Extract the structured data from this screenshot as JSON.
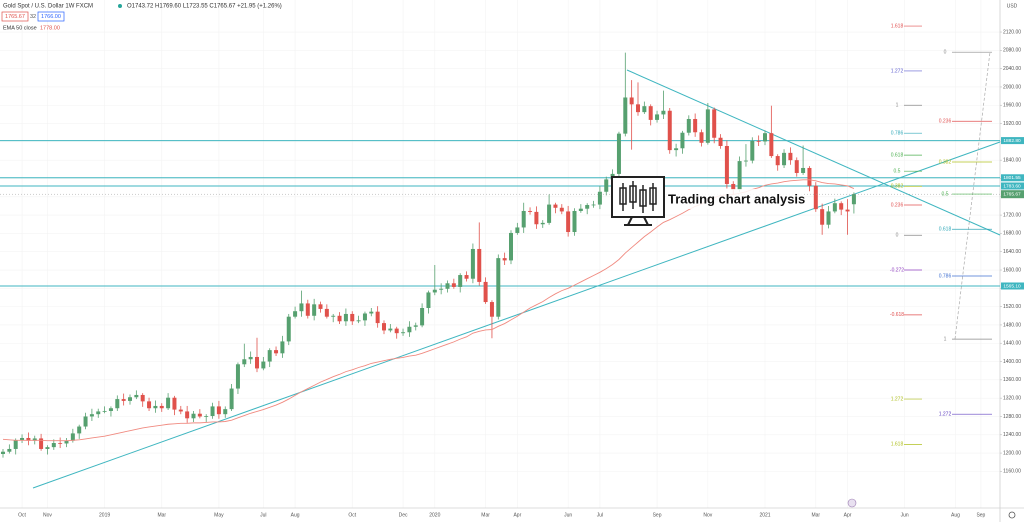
{
  "chart_data": {
    "type": "candlestick",
    "header": {
      "symbol": "Gold Spot / U.S. Dollar  1W  FXCM",
      "ohlc": "O1743.72  H1769.60  L1723.55  C1765.67  +21.95 (+1.26%)",
      "bid": "1765.67",
      "spread": "32",
      "ask": "1766.00",
      "ema_name": "EMA 50 close",
      "ema_value": "1778.00"
    },
    "currency": "USD",
    "overlay_text": "Trading chart analysis",
    "up_color": "#56a06f",
    "down_color": "#e0514b",
    "ema_color": "#f08a80",
    "level_color": "#3fb6c0",
    "grid": true,
    "ylim": [
      1080,
      2190
    ],
    "yticks": [
      {
        "value": 1160,
        "label": "1160.00"
      },
      {
        "value": 1200,
        "label": "1200.00"
      },
      {
        "value": 1240,
        "label": "1240.00"
      },
      {
        "value": 1280,
        "label": "1280.00"
      },
      {
        "value": 1320,
        "label": "1320.00"
      },
      {
        "value": 1360,
        "label": "1360.00"
      },
      {
        "value": 1400,
        "label": "1400.00"
      },
      {
        "value": 1440,
        "label": "1440.00"
      },
      {
        "value": 1480,
        "label": "1480.00"
      },
      {
        "value": 1520,
        "label": "1520.00"
      },
      {
        "value": 1560,
        "label": "1560.00"
      },
      {
        "value": 1600,
        "label": "1600.00"
      },
      {
        "value": 1640,
        "label": "1640.00"
      },
      {
        "value": 1680,
        "label": "1680.00"
      },
      {
        "value": 1720,
        "label": "1720.00"
      },
      {
        "value": 1760,
        "label": "1760.00"
      },
      {
        "value": 1800,
        "label": "1800.00"
      },
      {
        "value": 1840,
        "label": "1840.00"
      },
      {
        "value": 1880,
        "label": "1880.00"
      },
      {
        "value": 1920,
        "label": "1920.00"
      },
      {
        "value": 1960,
        "label": "1960.00"
      },
      {
        "value": 2000,
        "label": "2000.00"
      },
      {
        "value": 2040,
        "label": "2040.00"
      },
      {
        "value": 2080,
        "label": "2080.00"
      },
      {
        "value": 2120,
        "label": "2120.00"
      }
    ],
    "categories": [
      null,
      null,
      null,
      "Oct",
      null,
      null,
      null,
      "Nov",
      null,
      null,
      null,
      null,
      null,
      null,
      null,
      null,
      "2019",
      null,
      null,
      null,
      null,
      null,
      null,
      null,
      null,
      "Mar",
      null,
      null,
      null,
      null,
      null,
      null,
      null,
      null,
      "May",
      null,
      null,
      null,
      null,
      null,
      null,
      "Jul",
      null,
      null,
      null,
      null,
      "Aug",
      null,
      null,
      null,
      null,
      null,
      null,
      null,
      null,
      "Oct",
      null,
      null,
      null,
      null,
      null,
      null,
      null,
      "Dec",
      null,
      null,
      null,
      null,
      "2020",
      null,
      null,
      null,
      null,
      null,
      null,
      null,
      "Mar",
      null,
      null,
      null,
      null,
      "Apr",
      null,
      null,
      null,
      null,
      null,
      null,
      null,
      "Jun",
      null,
      null,
      null,
      null,
      "Jul",
      null,
      null,
      null,
      null,
      null,
      null,
      null,
      null,
      "Sep",
      null,
      null,
      null,
      null,
      null,
      null,
      null,
      "Nov",
      null,
      null,
      null,
      null,
      null,
      null,
      null,
      null,
      "2021",
      null,
      null,
      null,
      null,
      null,
      null,
      null,
      "Mar",
      null,
      null,
      null,
      null,
      "Apr",
      null,
      null,
      null,
      null,
      null,
      null,
      null,
      null,
      "Jun",
      null,
      null,
      null,
      null,
      null,
      null,
      null,
      "Aug",
      null,
      null,
      null,
      "Sep",
      null,
      null
    ],
    "candles": {
      "open": [
        1198,
        1203,
        1209,
        1228,
        1233,
        1227,
        1232,
        1209,
        1213,
        1222,
        1221,
        1227,
        1243,
        1258,
        1280,
        1285,
        1291,
        1292,
        1298,
        1318,
        1314,
        1322,
        1327,
        1313,
        1298,
        1303,
        1298,
        1321,
        1295,
        1291,
        1276,
        1286,
        1280,
        1281,
        1302,
        1285,
        1296,
        1341,
        1394,
        1405,
        1410,
        1385,
        1400,
        1425,
        1418,
        1444,
        1498,
        1510,
        1527,
        1500,
        1525,
        1515,
        1498,
        1500,
        1488,
        1504,
        1488,
        1490,
        1505,
        1509,
        1484,
        1468,
        1472,
        1462,
        1464,
        1476,
        1479,
        1517,
        1551,
        1557,
        1559,
        1571,
        1563,
        1589,
        1581,
        1646,
        1574,
        1530,
        1498,
        1626,
        1621,
        1681,
        1693,
        1729,
        1727,
        1700,
        1703,
        1743,
        1736,
        1728,
        1683,
        1729,
        1734,
        1742,
        1743,
        1771,
        1798,
        1810,
        1898,
        1977,
        1962,
        1945,
        1958,
        1928,
        1940,
        1948,
        1862,
        1866,
        1900,
        1930,
        1901,
        1878,
        1951,
        1889,
        1871,
        1788,
        1775,
        1838,
        1839,
        1882,
        1881,
        1899,
        1849,
        1829,
        1856,
        1840,
        1812,
        1823,
        1784,
        1733,
        1699,
        1728,
        1746,
        1732,
        1743.72,
        null,
        null,
        null,
        null,
        null,
        null,
        null,
        null,
        null,
        null,
        null,
        null,
        null,
        null,
        null,
        null,
        null,
        null,
        null,
        null,
        null,
        null
      ],
      "high": [
        1209,
        1219,
        1232,
        1241,
        1245,
        1238,
        1242,
        1217,
        1230,
        1234,
        1233,
        1253,
        1262,
        1288,
        1297,
        1297,
        1302,
        1302,
        1326,
        1330,
        1328,
        1337,
        1331,
        1321,
        1315,
        1309,
        1331,
        1325,
        1303,
        1303,
        1292,
        1296,
        1285,
        1310,
        1314,
        1302,
        1351,
        1398,
        1439,
        1422,
        1452,
        1410,
        1429,
        1433,
        1456,
        1504,
        1520,
        1555,
        1535,
        1537,
        1531,
        1525,
        1504,
        1508,
        1516,
        1510,
        1500,
        1509,
        1517,
        1521,
        1490,
        1482,
        1476,
        1472,
        1488,
        1485,
        1527,
        1555,
        1611,
        1571,
        1577,
        1581,
        1593,
        1597,
        1658,
        1704,
        1584,
        1534,
        1634,
        1638,
        1687,
        1703,
        1747,
        1737,
        1739,
        1709,
        1765,
        1747,
        1744,
        1740,
        1735,
        1744,
        1746,
        1751,
        1783,
        1804,
        1820,
        1902,
        2075,
        2015,
        2010,
        1968,
        1962,
        1948,
        1992,
        1954,
        1876,
        1904,
        1938,
        1942,
        1907,
        1965,
        1955,
        1897,
        1883,
        1794,
        1848,
        1875,
        1890,
        1894,
        1905,
        1959,
        1853,
        1864,
        1868,
        1846,
        1872,
        1827,
        1792,
        1745,
        1740,
        1756,
        1750,
        1755,
        1769.6,
        null,
        null,
        null,
        null,
        null,
        null,
        null,
        null,
        null,
        null,
        null,
        null,
        null,
        null,
        null,
        null,
        null,
        null,
        null,
        null,
        null,
        null
      ],
      "low": [
        1190,
        1199,
        1197,
        1222,
        1217,
        1219,
        1205,
        1197,
        1207,
        1211,
        1213,
        1223,
        1231,
        1252,
        1270,
        1277,
        1287,
        1280,
        1292,
        1304,
        1306,
        1318,
        1301,
        1292,
        1288,
        1290,
        1294,
        1283,
        1285,
        1266,
        1268,
        1276,
        1268,
        1275,
        1275,
        1277,
        1292,
        1329,
        1388,
        1395,
        1377,
        1381,
        1388,
        1412,
        1408,
        1436,
        1494,
        1498,
        1494,
        1490,
        1507,
        1494,
        1486,
        1482,
        1478,
        1480,
        1484,
        1478,
        1499,
        1474,
        1460,
        1464,
        1450,
        1456,
        1454,
        1468,
        1475,
        1505,
        1545,
        1547,
        1551,
        1559,
        1551,
        1575,
        1571,
        1566,
        1526,
        1451,
        1492,
        1611,
        1613,
        1677,
        1681,
        1721,
        1690,
        1692,
        1699,
        1724,
        1722,
        1673,
        1675,
        1725,
        1722,
        1736,
        1733,
        1763,
        1794,
        1798,
        1892,
        1863,
        1937,
        1941,
        1916,
        1922,
        1930,
        1854,
        1848,
        1854,
        1894,
        1891,
        1870,
        1874,
        1877,
        1865,
        1778,
        1764,
        1771,
        1826,
        1833,
        1871,
        1873,
        1845,
        1817,
        1823,
        1830,
        1804,
        1808,
        1772,
        1727,
        1677,
        1691,
        1724,
        1720,
        1677,
        1723.55,
        null,
        null,
        null,
        null,
        null,
        null,
        null,
        null,
        null,
        null,
        null,
        null,
        null,
        null,
        null,
        null,
        null,
        null,
        null,
        null,
        null,
        null
      ],
      "close": [
        1203,
        1209,
        1228,
        1233,
        1227,
        1232,
        1209,
        1213,
        1222,
        1221,
        1227,
        1243,
        1258,
        1280,
        1285,
        1291,
        1292,
        1298,
        1318,
        1314,
        1322,
        1327,
        1313,
        1298,
        1303,
        1298,
        1321,
        1295,
        1291,
        1276,
        1286,
        1280,
        1281,
        1302,
        1285,
        1296,
        1341,
        1394,
        1405,
        1410,
        1385,
        1400,
        1425,
        1418,
        1444,
        1498,
        1510,
        1527,
        1500,
        1525,
        1515,
        1498,
        1500,
        1488,
        1504,
        1488,
        1490,
        1505,
        1509,
        1484,
        1468,
        1472,
        1462,
        1464,
        1476,
        1479,
        1517,
        1551,
        1557,
        1559,
        1571,
        1563,
        1589,
        1581,
        1646,
        1574,
        1530,
        1498,
        1626,
        1621,
        1681,
        1693,
        1729,
        1727,
        1700,
        1703,
        1743,
        1736,
        1728,
        1683,
        1729,
        1734,
        1742,
        1743,
        1771,
        1798,
        1810,
        1898,
        1977,
        1962,
        1945,
        1958,
        1928,
        1940,
        1948,
        1862,
        1866,
        1900,
        1930,
        1901,
        1878,
        1951,
        1889,
        1871,
        1788,
        1775,
        1838,
        1839,
        1882,
        1881,
        1899,
        1849,
        1829,
        1856,
        1840,
        1812,
        1823,
        1784,
        1733,
        1699,
        1728,
        1746,
        1732,
        1728,
        1765.67,
        null,
        null,
        null,
        null,
        null,
        null,
        null,
        null,
        null,
        null,
        null,
        null,
        null,
        null,
        null,
        null,
        null,
        null,
        null,
        null,
        null,
        null
      ]
    },
    "ema": [
      1230,
      1229,
      1228,
      1228,
      1228,
      1228,
      1228,
      1227,
      1227,
      1227,
      1227,
      1228,
      1229,
      1231,
      1233,
      1235,
      1237,
      1240,
      1243,
      1246,
      1249,
      1252,
      1255,
      1257,
      1259,
      1261,
      1263,
      1264,
      1265,
      1265,
      1266,
      1266,
      1267,
      1268,
      1268,
      1269,
      1272,
      1277,
      1282,
      1287,
      1291,
      1295,
      1300,
      1305,
      1311,
      1318,
      1326,
      1334,
      1341,
      1348,
      1355,
      1361,
      1367,
      1372,
      1378,
      1382,
      1387,
      1391,
      1396,
      1399,
      1402,
      1405,
      1407,
      1409,
      1412,
      1414,
      1418,
      1423,
      1428,
      1433,
      1438,
      1443,
      1449,
      1454,
      1462,
      1466,
      1469,
      1470,
      1477,
      1483,
      1491,
      1499,
      1508,
      1517,
      1524,
      1531,
      1540,
      1548,
      1555,
      1560,
      1567,
      1574,
      1581,
      1588,
      1595,
      1603,
      1612,
      1623,
      1637,
      1649,
      1661,
      1673,
      1683,
      1694,
      1704,
      1710,
      1717,
      1724,
      1732,
      1739,
      1744,
      1753,
      1758,
      1763,
      1764,
      1765,
      1768,
      1771,
      1776,
      1780,
      1785,
      1788,
      1790,
      1793,
      1795,
      1796,
      1797,
      1797,
      1795,
      1791,
      1789,
      1788,
      1786,
      1784,
      1778,
      null,
      null,
      null,
      null,
      null,
      null,
      null,
      null,
      null,
      null,
      null,
      null,
      null,
      null,
      null,
      null,
      null,
      null,
      null,
      null,
      null,
      null
    ],
    "levels": [
      {
        "value": 1882.8,
        "label": "1882.80"
      },
      {
        "value": 1801.55,
        "label": "1801.55"
      },
      {
        "value": 1783.6,
        "label": "1783.60"
      },
      {
        "value": 1565.1,
        "label": "1565.10"
      }
    ],
    "fib_left": [
      {
        "label": "1.618",
        "price": 2133,
        "color": "#e05050"
      },
      {
        "label": "1.272",
        "price": 2035,
        "color": "#6060d0"
      },
      {
        "label": "1",
        "price": 1960,
        "color": "#888888"
      },
      {
        "label": "0.786",
        "price": 1899,
        "color": "#30a8b8"
      },
      {
        "label": "0.618",
        "price": 1851,
        "color": "#4caf50"
      },
      {
        "label": "0.5",
        "price": 1816,
        "color": "#4caf50"
      },
      {
        "label": "0.382",
        "price": 1783,
        "color": "#b0c020"
      },
      {
        "label": "0.236",
        "price": 1742,
        "color": "#e05050"
      },
      {
        "label": "0",
        "price": 1676,
        "color": "#888888"
      },
      {
        "label": "-0.272",
        "price": 1600,
        "color": "#9040c0"
      },
      {
        "label": "-0.618",
        "price": 1502,
        "color": "#e05050"
      },
      {
        "label": "1.272",
        "price": 1318,
        "color": "#b0c020"
      },
      {
        "label": "1.618",
        "price": 1219,
        "color": "#b0c020"
      }
    ],
    "fib_right": [
      {
        "label": "0",
        "price": 2076,
        "color": "#888888"
      },
      {
        "label": "0.236",
        "price": 1925,
        "color": "#e05050"
      },
      {
        "label": "0.382",
        "price": 1836,
        "color": "#b0c020"
      },
      {
        "label": "0.5",
        "price": 1766,
        "color": "#4caf50"
      },
      {
        "label": "0.618",
        "price": 1689,
        "color": "#30a8b8"
      },
      {
        "label": "0.786",
        "price": 1587,
        "color": "#4070d0"
      },
      {
        "label": "1",
        "price": 1449,
        "color": "#888888"
      },
      {
        "label": "1.272",
        "price": 1285,
        "color": "#6040c0"
      }
    ]
  }
}
